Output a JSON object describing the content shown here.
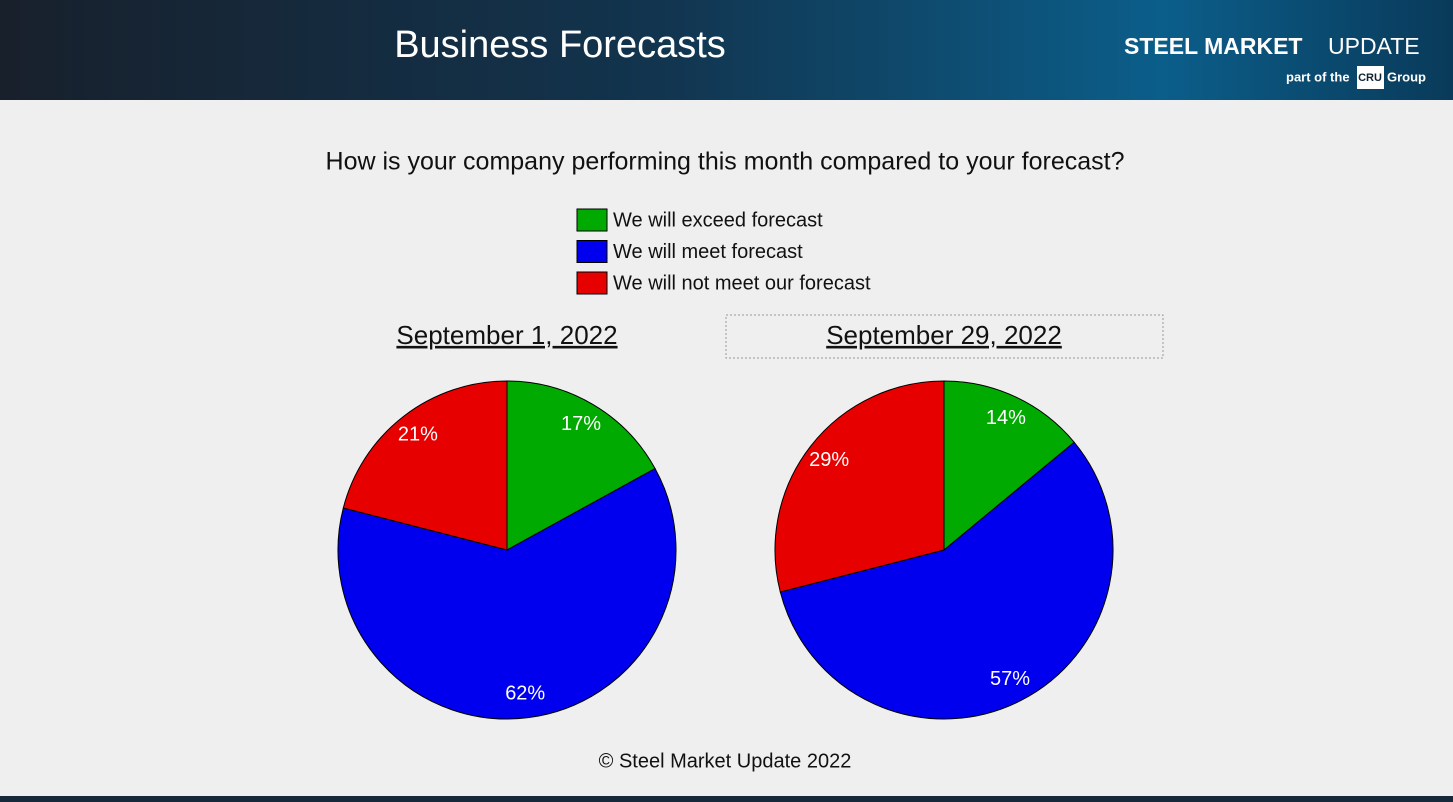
{
  "header": {
    "title": "Business Forecasts",
    "logo": {
      "brand_bold": "STEEL MARKET",
      "brand_light": "UPDATE",
      "tagline": "part of the",
      "badge": "CRU",
      "group": "Group"
    }
  },
  "subtitle": "How is your company performing this month compared to your forecast?",
  "legend": {
    "labels": [
      "We will exceed forecast",
      "We will meet forecast",
      "We will not meet our forecast"
    ],
    "colors": [
      "#00aa00",
      "#0000ee",
      "#e60000"
    ]
  },
  "chart_data": [
    {
      "type": "pie",
      "title": "September 1, 2022",
      "values": [
        17,
        62,
        21
      ],
      "value_labels": [
        "17%",
        "62%",
        "21%"
      ]
    },
    {
      "type": "pie",
      "title": "September 29, 2022",
      "values": [
        14,
        57,
        29
      ],
      "value_labels": [
        "14%",
        "57%",
        "29%"
      ]
    }
  ],
  "footer": "© Steel Market Update 2022"
}
